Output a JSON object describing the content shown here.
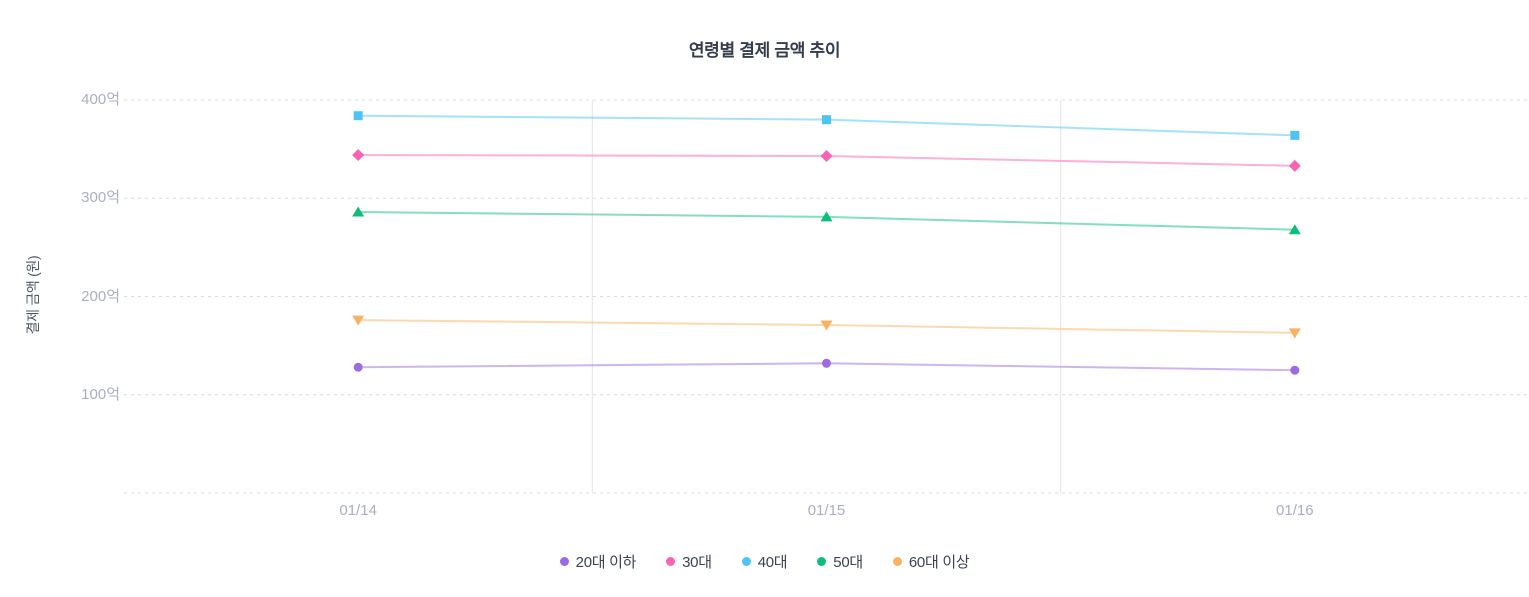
{
  "chart_data": {
    "type": "line",
    "title": "연령별 결제 금액 추이",
    "ylabel": "결제 금액 (원)",
    "x": [
      "01/14",
      "01/15",
      "01/16"
    ],
    "unit": "억",
    "ylim": [
      0,
      400
    ],
    "yticks": [
      100,
      200,
      300,
      400
    ],
    "ytick_labels": [
      "100억",
      "200억",
      "300억",
      "400억"
    ],
    "grid": true,
    "legend_position": "bottom",
    "series": [
      {
        "name": "20대 이하",
        "color": "#9b6bdf",
        "marker": "circle",
        "values": [
          128,
          132,
          125
        ]
      },
      {
        "name": "30대",
        "color": "#f963b1",
        "marker": "diamond",
        "values": [
          344,
          343,
          333
        ]
      },
      {
        "name": "40대",
        "color": "#4ec3f5",
        "marker": "square",
        "values": [
          384,
          380,
          364
        ]
      },
      {
        "name": "50대",
        "color": "#0cbd7c",
        "marker": "triangle-up",
        "values": [
          286,
          281,
          268
        ]
      },
      {
        "name": "60대 이상",
        "color": "#f9b264",
        "marker": "triangle-down",
        "values": [
          176,
          171,
          163
        ]
      }
    ]
  },
  "styles": {
    "gridline_color": "#d9d9e4",
    "band_line_color": "#e3e3ee"
  }
}
